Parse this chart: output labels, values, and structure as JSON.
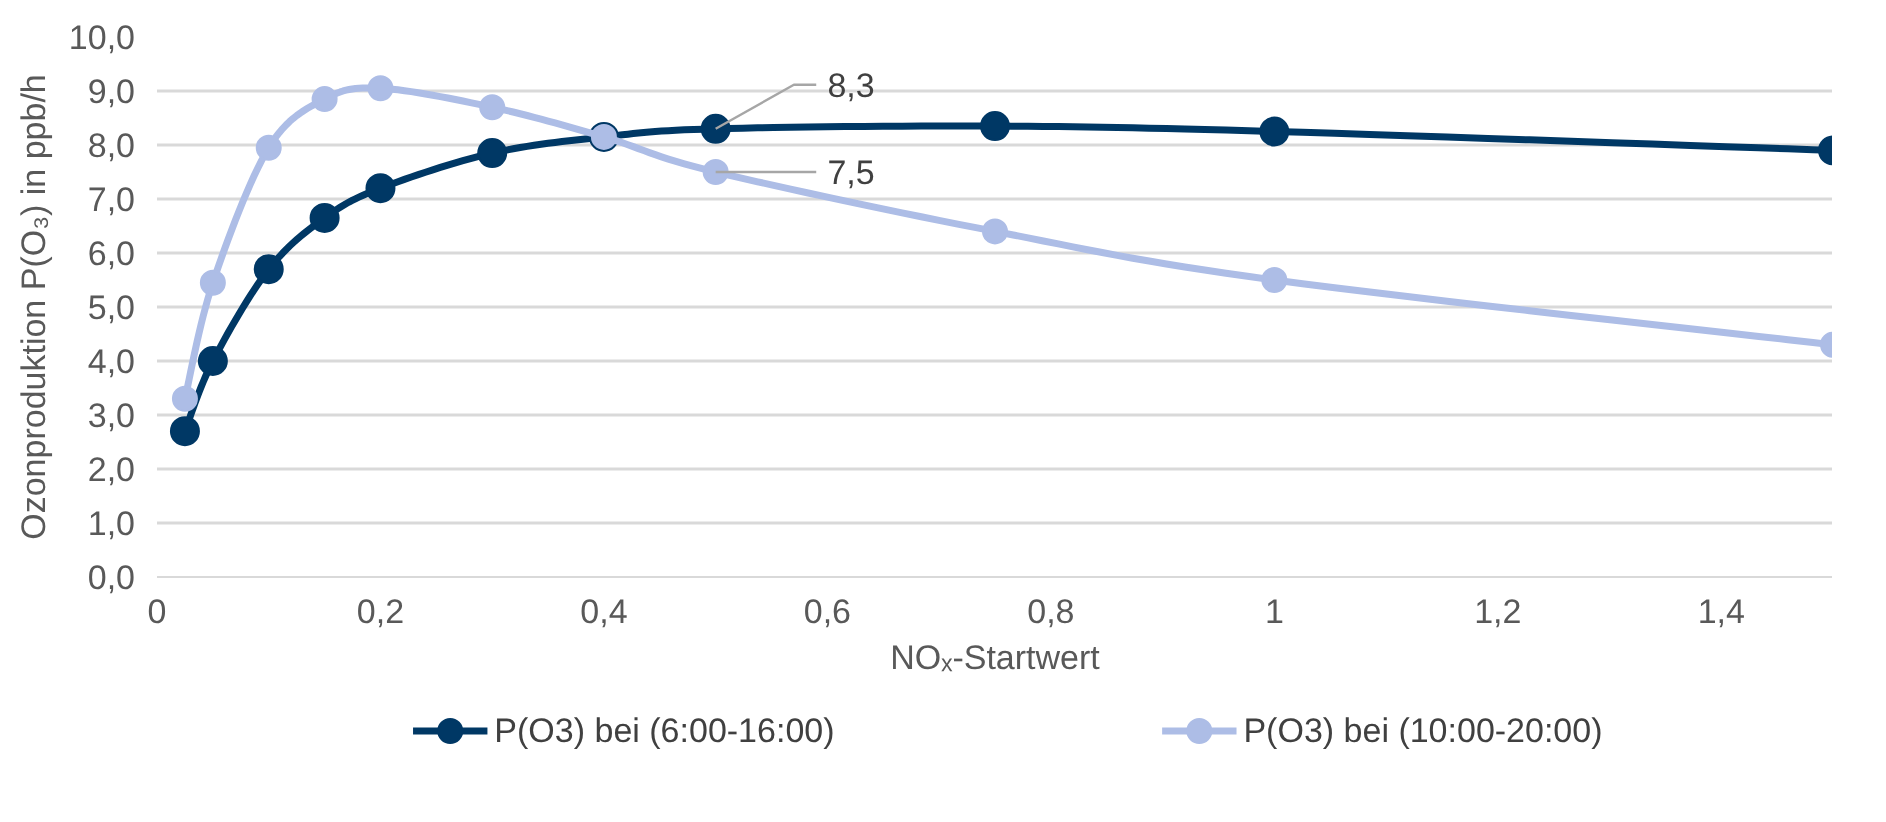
{
  "chart_data": {
    "type": "line",
    "xlabel": "NOₓ-Startwert",
    "ylabel": "Ozonproduktion P(O₃) in ppb/h",
    "series": [
      {
        "name": "P(O3) bei (6:00-16:00)",
        "color": "#003865",
        "x": [
          0.025,
          0.05,
          0.1,
          0.15,
          0.2,
          0.3,
          0.4,
          0.5,
          0.75,
          1.0,
          1.5
        ],
        "values": [
          2.7,
          4.0,
          5.7,
          6.65,
          7.2,
          7.85,
          8.15,
          8.3,
          8.35,
          8.25,
          7.9
        ]
      },
      {
        "name": "P(O3) bei (10:00-20:00)",
        "color": "#adbde6",
        "x": [
          0.025,
          0.05,
          0.1,
          0.15,
          0.2,
          0.3,
          0.4,
          0.5,
          0.75,
          1.0,
          1.5
        ],
        "values": [
          3.3,
          5.45,
          7.95,
          8.85,
          9.05,
          8.7,
          8.15,
          7.5,
          6.4,
          5.5,
          4.3
        ]
      }
    ],
    "annotations": [
      {
        "text": "8,3",
        "x": 0.5,
        "y": 8.3
      },
      {
        "text": "7,5",
        "x": 0.5,
        "y": 7.5
      }
    ],
    "xlim": [
      0,
      1.5
    ],
    "ylim": [
      0,
      10
    ],
    "xticks": [
      0,
      {
        "value": 0.2,
        "label": "0,2"
      },
      {
        "value": 0.4,
        "label": "0,4"
      },
      {
        "value": 0.6,
        "label": "0,6"
      },
      {
        "value": 0.8,
        "label": "0,8"
      },
      1,
      {
        "value": 1.2,
        "label": "1,2"
      },
      {
        "value": 1.4,
        "label": "1,4"
      }
    ],
    "yticks": [
      {
        "value": 0,
        "label": "0,0"
      },
      {
        "value": 1,
        "label": "1,0"
      },
      {
        "value": 2,
        "label": "2,0"
      },
      {
        "value": 3,
        "label": "3,0"
      },
      {
        "value": 4,
        "label": "4,0"
      },
      {
        "value": 5,
        "label": "5,0"
      },
      {
        "value": 6,
        "label": "6,0"
      },
      {
        "value": 7,
        "label": "7,0"
      },
      {
        "value": 8,
        "label": "8,0"
      },
      {
        "value": 9,
        "label": "9,0"
      },
      {
        "value": 10,
        "label": "10,0"
      }
    ],
    "grid": "y",
    "legend": "bottom",
    "marker": "circle",
    "line_style": "solid"
  }
}
